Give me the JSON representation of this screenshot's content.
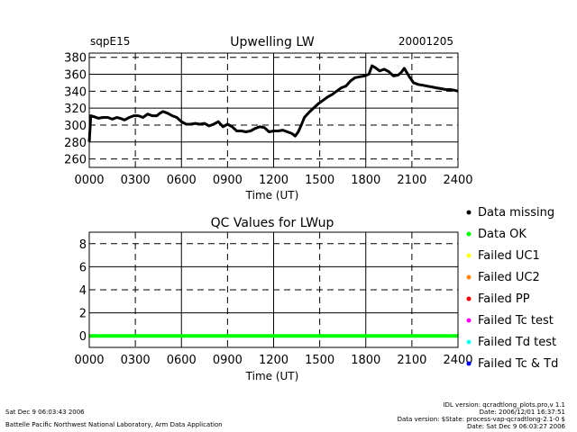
{
  "site_label": "sqpE15",
  "date_label": "20001205",
  "colors": {
    "missing": "#000000",
    "ok": "#00ff00",
    "uc1": "#ffff00",
    "uc2": "#ff8800",
    "pp": "#ff0000",
    "tc": "#ff00ff",
    "td": "#00ffff",
    "tctd": "#0000ff"
  },
  "chart_data": [
    {
      "type": "line",
      "title": "Upwelling LW",
      "xlabel": "Time (UT)",
      "ylabel": "",
      "x_tick_labels": [
        "0000",
        "0300",
        "0600",
        "0900",
        "1200",
        "1500",
        "1800",
        "2100",
        "2400"
      ],
      "y_ticks": [
        260,
        280,
        300,
        320,
        340,
        360,
        380
      ],
      "xlim": [
        0,
        24
      ],
      "ylim": [
        250,
        385
      ],
      "grid": true,
      "series": [
        {
          "x": [
            0.0,
            0.1,
            0.3,
            0.6,
            0.9,
            1.2,
            1.5,
            1.8,
            2.0,
            2.3,
            2.6,
            2.9,
            3.2,
            3.5,
            3.8,
            4.1,
            4.4,
            4.6,
            4.8,
            5.1,
            5.4,
            5.7,
            6.0,
            6.3,
            6.6,
            6.9,
            7.2,
            7.5,
            7.8,
            8.1,
            8.4,
            8.7,
            9.0,
            9.3,
            9.6,
            9.9,
            10.2,
            10.5,
            10.8,
            11.1,
            11.4,
            11.7,
            12.0,
            12.3,
            12.6,
            12.9,
            13.2,
            13.4,
            13.6,
            13.8,
            14.0,
            14.3,
            14.6,
            14.9,
            15.2,
            15.5,
            15.8,
            16.1,
            16.4,
            16.7,
            17.0,
            17.3,
            17.6,
            17.9,
            18.2,
            18.4,
            18.6,
            18.9,
            19.2,
            19.5,
            19.8,
            20.1,
            20.3,
            20.5,
            20.8,
            21.1,
            21.4,
            21.7,
            22.0,
            22.3,
            22.6,
            22.9,
            23.2,
            23.5,
            23.8,
            24.0
          ],
          "y": [
            280,
            311,
            310,
            308,
            309,
            309,
            307,
            309,
            308,
            306,
            309,
            311,
            311,
            309,
            313,
            311,
            311,
            314,
            316,
            314,
            311,
            309,
            304,
            301,
            301,
            302,
            301,
            302,
            299,
            301,
            304,
            298,
            301,
            298,
            293,
            293,
            292,
            293,
            296,
            298,
            297,
            292,
            293,
            293,
            294,
            292,
            290,
            287,
            292,
            300,
            309,
            315,
            320,
            325,
            329,
            333,
            336,
            340,
            344,
            346,
            352,
            356,
            357,
            358,
            360,
            370,
            368,
            364,
            366,
            363,
            358,
            359,
            362,
            367,
            358,
            350,
            348,
            347,
            346,
            345,
            344,
            343,
            342,
            342,
            341,
            340
          ]
        }
      ]
    },
    {
      "type": "line",
      "title": "QC Values for LWup",
      "xlabel": "Time (UT)",
      "ylabel": "",
      "x_tick_labels": [
        "0000",
        "0300",
        "0600",
        "0900",
        "1200",
        "1500",
        "1800",
        "2100",
        "2400"
      ],
      "y_ticks": [
        0,
        2,
        4,
        6,
        8
      ],
      "xlim": [
        0,
        24
      ],
      "ylim": [
        -1,
        9
      ],
      "grid": true,
      "series": [
        {
          "x": [
            0,
            24
          ],
          "y": [
            0,
            0
          ]
        }
      ]
    }
  ],
  "legend": [
    {
      "label": "Data missing",
      "color_key": "missing"
    },
    {
      "label": "Data OK",
      "color_key": "ok"
    },
    {
      "label": "Failed UC1",
      "color_key": "uc1"
    },
    {
      "label": "Failed UC2",
      "color_key": "uc2"
    },
    {
      "label": "Failed PP",
      "color_key": "pp"
    },
    {
      "label": "Failed Tc test",
      "color_key": "tc"
    },
    {
      "label": "Failed Td test",
      "color_key": "td"
    },
    {
      "label": "Failed Tc & Td",
      "color_key": "tctd"
    }
  ],
  "footer": {
    "timestamp": "Sat Dec  9 06:03:43 2006",
    "lab": "Battelle Pacific Northwest National Laboratory, Arm Data Application",
    "idl_version": "IDL version: qcradtlong_plots.pro,v 1.1",
    "proc_date": "Date: 2006/12/01 16:37:51",
    "data_version": "Data version: $State: process-vap-qcradtlong-2.1-0 $",
    "run_date": "Date: Sat Dec  9 06:03:27 2006"
  }
}
